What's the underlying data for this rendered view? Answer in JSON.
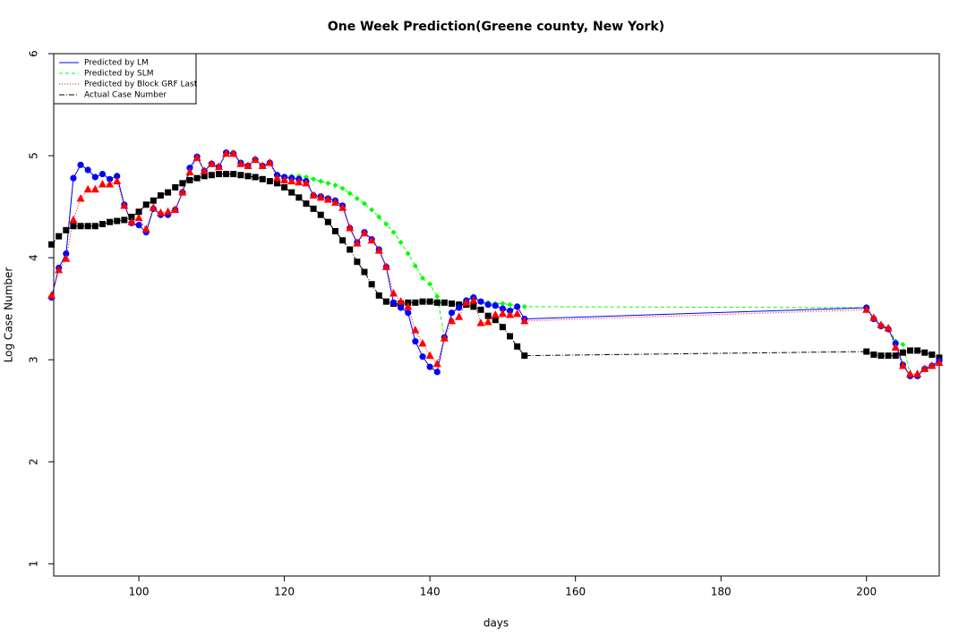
{
  "chart_data": {
    "type": "line",
    "title": "One Week Prediction(Greene county, New York)",
    "x_label": "days",
    "y_label": "Log Case Number",
    "xlim": [
      88.3,
      210
    ],
    "ylim": [
      0.88,
      6
    ],
    "xticks": [
      100,
      120,
      140,
      160,
      180,
      200
    ],
    "yticks": [
      1,
      2,
      3,
      4,
      5,
      6
    ],
    "legend": "top-left",
    "x": [
      88,
      89,
      90,
      91,
      92,
      93,
      94,
      95,
      96,
      97,
      98,
      99,
      100,
      101,
      102,
      103,
      104,
      105,
      106,
      107,
      108,
      109,
      110,
      111,
      112,
      113,
      114,
      115,
      116,
      117,
      118,
      119,
      120,
      121,
      122,
      123,
      124,
      125,
      126,
      127,
      128,
      129,
      130,
      131,
      132,
      133,
      134,
      135,
      136,
      137,
      138,
      139,
      140,
      141,
      142,
      143,
      144,
      145,
      146,
      147,
      148,
      149,
      150,
      151,
      152,
      153,
      200,
      201,
      202,
      203,
      204,
      205,
      206,
      207,
      208,
      209,
      210
    ],
    "series": [
      {
        "name": "Predicted by LM",
        "color": "#0000ff",
        "linestyle": "solid",
        "marker": "circle",
        "values": [
          3.61,
          3.9,
          4.04,
          4.78,
          4.91,
          4.86,
          4.79,
          4.82,
          4.77,
          4.8,
          4.52,
          4.34,
          4.32,
          4.25,
          4.48,
          4.42,
          4.42,
          4.47,
          4.64,
          4.88,
          4.99,
          4.85,
          4.92,
          4.89,
          5.03,
          5.02,
          4.93,
          4.9,
          4.96,
          4.9,
          4.93,
          4.81,
          4.79,
          4.78,
          4.77,
          4.75,
          4.61,
          4.6,
          4.58,
          4.56,
          4.51,
          4.29,
          4.15,
          4.25,
          4.18,
          4.08,
          3.91,
          3.56,
          3.51,
          3.46,
          3.18,
          3.03,
          2.93,
          2.88,
          3.22,
          3.46,
          3.51,
          3.58,
          3.61,
          3.57,
          3.54,
          3.53,
          3.5,
          3.48,
          3.52,
          3.4,
          3.51,
          3.4,
          3.33,
          3.3,
          3.16,
          2.95,
          2.84,
          2.84,
          2.91,
          2.94,
          2.99
        ]
      },
      {
        "name": "Predicted by SLM",
        "color": "#00ff00",
        "linestyle": "dashed",
        "marker": "diamond",
        "values": [
          3.61,
          3.9,
          4.04,
          4.78,
          4.91,
          4.86,
          4.79,
          4.82,
          4.77,
          4.8,
          4.52,
          4.34,
          4.32,
          4.25,
          4.48,
          4.42,
          4.42,
          4.47,
          4.64,
          4.88,
          4.99,
          4.85,
          4.92,
          4.89,
          5.03,
          5.02,
          4.93,
          4.9,
          4.96,
          4.9,
          4.93,
          4.81,
          4.8,
          4.8,
          4.8,
          4.79,
          4.77,
          4.75,
          4.73,
          4.71,
          4.68,
          4.63,
          4.58,
          4.53,
          4.47,
          4.4,
          4.33,
          4.25,
          4.15,
          4.04,
          3.92,
          3.8,
          3.74,
          3.62,
          3.22,
          3.46,
          3.52,
          3.59,
          3.62,
          3.57,
          3.56,
          3.55,
          3.55,
          3.54,
          3.53,
          3.52,
          3.51,
          3.41,
          3.34,
          3.31,
          3.18,
          3.15,
          2.86,
          2.86,
          2.92,
          2.95,
          3.0
        ]
      },
      {
        "name": "Predicted by Block GRF Last",
        "color": "#ff0000",
        "linestyle": "dotted",
        "marker": "triangle",
        "values": [
          3.63,
          3.88,
          3.99,
          4.37,
          4.58,
          4.67,
          4.67,
          4.72,
          4.72,
          4.75,
          4.51,
          4.35,
          4.39,
          4.28,
          4.49,
          4.44,
          4.45,
          4.47,
          4.64,
          4.84,
          4.98,
          4.85,
          4.92,
          4.89,
          5.02,
          5.02,
          4.92,
          4.9,
          4.96,
          4.9,
          4.93,
          4.78,
          4.76,
          4.75,
          4.74,
          4.73,
          4.61,
          4.59,
          4.57,
          4.54,
          4.49,
          4.29,
          4.14,
          4.24,
          4.17,
          4.07,
          3.91,
          3.65,
          3.57,
          3.52,
          3.29,
          3.16,
          3.04,
          2.96,
          3.21,
          3.38,
          3.42,
          3.56,
          3.58,
          3.36,
          3.37,
          3.44,
          3.45,
          3.44,
          3.45,
          3.38,
          3.49,
          3.41,
          3.34,
          3.31,
          3.12,
          2.94,
          2.86,
          2.86,
          2.91,
          2.94,
          2.97
        ]
      },
      {
        "name": "Actual Case Number",
        "color": "#000000",
        "linestyle": "dashdot",
        "marker": "square",
        "values": [
          4.13,
          4.21,
          4.27,
          4.31,
          4.31,
          4.31,
          4.31,
          4.33,
          4.35,
          4.36,
          4.37,
          4.4,
          4.45,
          4.52,
          4.56,
          4.61,
          4.64,
          4.69,
          4.73,
          4.76,
          4.78,
          4.8,
          4.81,
          4.82,
          4.82,
          4.82,
          4.81,
          4.8,
          4.79,
          4.77,
          4.75,
          4.73,
          4.69,
          4.64,
          4.59,
          4.53,
          4.48,
          4.42,
          4.35,
          4.26,
          4.17,
          4.08,
          3.96,
          3.86,
          3.74,
          3.63,
          3.57,
          3.55,
          3.55,
          3.56,
          3.56,
          3.57,
          3.57,
          3.56,
          3.56,
          3.55,
          3.54,
          3.54,
          3.52,
          3.49,
          3.43,
          3.39,
          3.32,
          3.23,
          3.13,
          3.04,
          3.08,
          3.05,
          3.04,
          3.04,
          3.04,
          3.07,
          3.09,
          3.09,
          3.07,
          3.05,
          3.02
        ]
      }
    ]
  }
}
